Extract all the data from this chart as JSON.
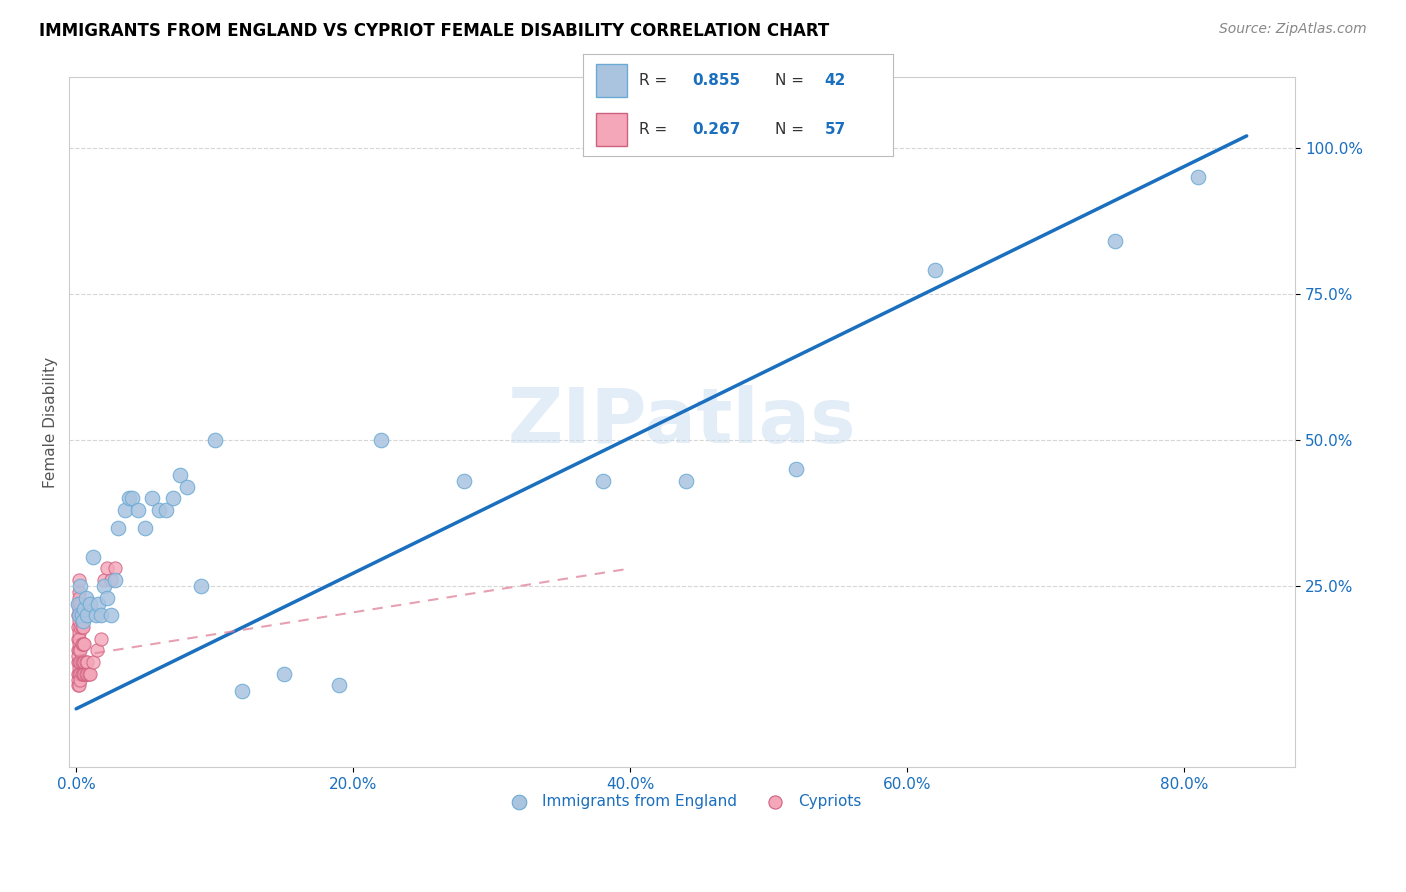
{
  "title": "IMMIGRANTS FROM ENGLAND VS CYPRIOT FEMALE DISABILITY CORRELATION CHART",
  "source": "Source: ZipAtlas.com",
  "ylabel": "Female Disability",
  "x_tick_labels": [
    "0.0%",
    "20.0%",
    "40.0%",
    "60.0%",
    "80.0%"
  ],
  "x_tick_positions": [
    0.0,
    0.2,
    0.4,
    0.6,
    0.8
  ],
  "y_tick_labels": [
    "25.0%",
    "50.0%",
    "75.0%",
    "100.0%"
  ],
  "y_tick_positions": [
    0.25,
    0.5,
    0.75,
    1.0
  ],
  "xlim": [
    -0.005,
    0.88
  ],
  "ylim": [
    -0.06,
    1.12
  ],
  "color_england": "#aac4e0",
  "color_england_border": "#6aaad4",
  "color_cypriot": "#f4a7b9",
  "color_cypriot_border": "#d06080",
  "color_england_line": "#1a6fbf",
  "color_cypriot_line": "#e08098",
  "watermark": "ZIPatlas",
  "england_R": 0.855,
  "england_N": 42,
  "cypriot_R": 0.267,
  "cypriot_N": 57,
  "england_scatter_x": [
    0.001,
    0.002,
    0.003,
    0.004,
    0.005,
    0.006,
    0.007,
    0.008,
    0.01,
    0.012,
    0.014,
    0.016,
    0.018,
    0.02,
    0.022,
    0.025,
    0.028,
    0.03,
    0.035,
    0.038,
    0.04,
    0.045,
    0.05,
    0.055,
    0.06,
    0.065,
    0.07,
    0.075,
    0.08,
    0.09,
    0.1,
    0.12,
    0.15,
    0.19,
    0.22,
    0.28,
    0.38,
    0.44,
    0.52,
    0.62,
    0.75,
    0.81
  ],
  "england_scatter_y": [
    0.22,
    0.2,
    0.25,
    0.2,
    0.19,
    0.21,
    0.23,
    0.2,
    0.22,
    0.3,
    0.2,
    0.22,
    0.2,
    0.25,
    0.23,
    0.2,
    0.26,
    0.35,
    0.38,
    0.4,
    0.4,
    0.38,
    0.35,
    0.4,
    0.38,
    0.38,
    0.4,
    0.44,
    0.42,
    0.25,
    0.5,
    0.07,
    0.1,
    0.08,
    0.5,
    0.43,
    0.43,
    0.43,
    0.45,
    0.79,
    0.84,
    0.95
  ],
  "cypriot_scatter_x": [
    0.001,
    0.001,
    0.001,
    0.001,
    0.001,
    0.001,
    0.001,
    0.001,
    0.001,
    0.001,
    0.002,
    0.002,
    0.002,
    0.002,
    0.002,
    0.002,
    0.002,
    0.002,
    0.002,
    0.002,
    0.002,
    0.002,
    0.002,
    0.002,
    0.002,
    0.003,
    0.003,
    0.003,
    0.003,
    0.003,
    0.003,
    0.003,
    0.004,
    0.004,
    0.004,
    0.004,
    0.004,
    0.005,
    0.005,
    0.005,
    0.005,
    0.006,
    0.006,
    0.006,
    0.007,
    0.007,
    0.008,
    0.008,
    0.009,
    0.01,
    0.012,
    0.015,
    0.018,
    0.02,
    0.022,
    0.025,
    0.028
  ],
  "cypriot_scatter_y": [
    0.1,
    0.12,
    0.08,
    0.14,
    0.16,
    0.18,
    0.09,
    0.13,
    0.2,
    0.22,
    0.11,
    0.15,
    0.2,
    0.17,
    0.1,
    0.12,
    0.08,
    0.22,
    0.24,
    0.26,
    0.16,
    0.14,
    0.19,
    0.21,
    0.23,
    0.1,
    0.12,
    0.14,
    0.18,
    0.2,
    0.09,
    0.22,
    0.1,
    0.12,
    0.15,
    0.18,
    0.2,
    0.1,
    0.12,
    0.15,
    0.18,
    0.1,
    0.12,
    0.15,
    0.1,
    0.12,
    0.1,
    0.12,
    0.1,
    0.1,
    0.12,
    0.14,
    0.16,
    0.26,
    0.28,
    0.26,
    0.28
  ],
  "eng_line_x": [
    0.0,
    0.845
  ],
  "eng_line_y": [
    0.04,
    1.02
  ],
  "cyp_line_x": [
    0.0,
    0.4
  ],
  "cyp_line_y": [
    0.13,
    0.28
  ]
}
